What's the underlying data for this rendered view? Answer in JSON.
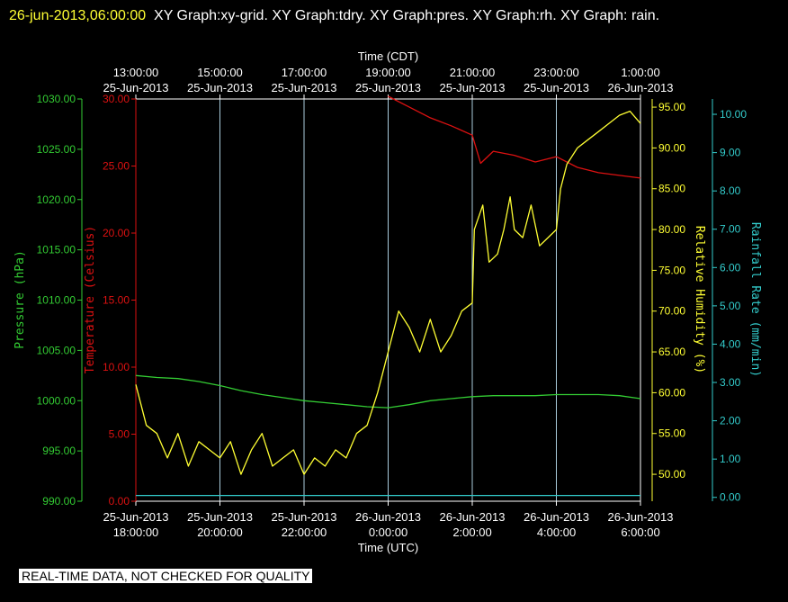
{
  "header": {
    "timestamp": "26-jun-2013,06:00:00",
    "graphs": "XY Graph:xy-grid.  XY Graph:tdry.  XY Graph:pres.  XY Graph:rh.  XY Graph: rain."
  },
  "notice": "REAL-TIME DATA, NOT CHECKED FOR QUALITY",
  "colors": {
    "pressure": "#33cc33",
    "temperature": "#dd1111",
    "humidity": "#ffff33",
    "rain": "#33cccc",
    "grid": "#aaccdd",
    "text": "#ffffff"
  },
  "chart_data": {
    "type": "line",
    "top_axis": {
      "label": "Time (CDT)",
      "ticks": [
        [
          "13:00:00",
          "25-Jun-2013"
        ],
        [
          "15:00:00",
          "25-Jun-2013"
        ],
        [
          "17:00:00",
          "25-Jun-2013"
        ],
        [
          "19:00:00",
          "25-Jun-2013"
        ],
        [
          "21:00:00",
          "25-Jun-2013"
        ],
        [
          "23:00:00",
          "25-Jun-2013"
        ],
        [
          "1:00:00",
          "26-Jun-2013"
        ]
      ]
    },
    "bottom_axis": {
      "label": "Time (UTC)",
      "ticks": [
        [
          "25-Jun-2013",
          "18:00:00"
        ],
        [
          "25-Jun-2013",
          "20:00:00"
        ],
        [
          "25-Jun-2013",
          "22:00:00"
        ],
        [
          "26-Jun-2013",
          "0:00:00"
        ],
        [
          "26-Jun-2013",
          "2:00:00"
        ],
        [
          "26-Jun-2013",
          "4:00:00"
        ],
        [
          "26-Jun-2013",
          "6:00:00"
        ]
      ],
      "range_hours_utc": [
        18,
        30
      ]
    },
    "axes": {
      "pressure": {
        "label": "Pressure (hPa)",
        "ylim": [
          990,
          1030
        ],
        "ticks": [
          "990.00",
          "995.00",
          "1000.00",
          "1005.00",
          "1010.00",
          "1015.00",
          "1020.00",
          "1025.00",
          "1030.00"
        ]
      },
      "temperature": {
        "label": "Temperature (Celsius)",
        "ylim": [
          0,
          30
        ],
        "ticks": [
          "0.00",
          "5.00",
          "10.00",
          "15.00",
          "20.00",
          "25.00",
          "30.00"
        ]
      },
      "humidity": {
        "label": "Relative Humidity (%)",
        "ylim": [
          46.7,
          96.0
        ],
        "ticks": [
          "50.00",
          "55.00",
          "60.00",
          "65.00",
          "70.00",
          "75.00",
          "80.00",
          "85.00",
          "90.00",
          "95.00"
        ]
      },
      "rain": {
        "label": "Rainfall Rate (mm/min)",
        "ylim": [
          -0.1,
          10.4
        ],
        "ticks": [
          "0.00",
          "1.00",
          "2.00",
          "3.00",
          "4.00",
          "5.00",
          "6.00",
          "7.00",
          "8.00",
          "9.00",
          "10.00"
        ]
      }
    },
    "grid": true,
    "series": [
      {
        "name": "pres",
        "axis": "pressure",
        "x": [
          18,
          18.5,
          19,
          19.5,
          20,
          20.5,
          21,
          21.5,
          22,
          22.5,
          23,
          23.5,
          24,
          24.5,
          25,
          25.5,
          26,
          26.5,
          27,
          27.5,
          28,
          28.5,
          29,
          29.5,
          30
        ],
        "y": [
          1002.5,
          1002.3,
          1002.2,
          1001.9,
          1001.5,
          1001.0,
          1000.6,
          1000.3,
          1000.0,
          999.8,
          999.6,
          999.4,
          999.3,
          999.6,
          1000.0,
          1000.2,
          1000.4,
          1000.5,
          1000.5,
          1000.5,
          1000.6,
          1000.6,
          1000.6,
          1000.5,
          1000.2
        ]
      },
      {
        "name": "tdry",
        "axis": "temperature",
        "x": [
          24,
          24.5,
          25,
          25.5,
          26,
          26.2,
          26.5,
          27,
          27.5,
          28,
          28.5,
          29,
          29.5,
          30
        ],
        "y": [
          30.2,
          29.4,
          28.6,
          28.0,
          27.3,
          25.2,
          26.1,
          25.8,
          25.3,
          25.7,
          24.9,
          24.5,
          24.3,
          24.1
        ]
      },
      {
        "name": "rh",
        "axis": "humidity",
        "x": [
          18,
          18.25,
          18.5,
          18.75,
          19,
          19.25,
          19.5,
          19.75,
          20,
          20.25,
          20.5,
          20.75,
          21,
          21.25,
          21.5,
          21.75,
          22,
          22.25,
          22.5,
          22.75,
          23,
          23.25,
          23.5,
          23.75,
          24,
          24.25,
          24.5,
          24.75,
          25,
          25.25,
          25.5,
          25.75,
          26,
          26.05,
          26.25,
          26.4,
          26.6,
          26.75,
          26.9,
          27,
          27.2,
          27.4,
          27.6,
          27.8,
          28,
          28.1,
          28.25,
          28.5,
          28.75,
          29,
          29.25,
          29.5,
          29.75,
          30
        ],
        "y": [
          61,
          56,
          55,
          52,
          55,
          51,
          54,
          53,
          52,
          54,
          50,
          53,
          55,
          51,
          52,
          53,
          50,
          52,
          51,
          53,
          52,
          55,
          56,
          60,
          65,
          70,
          68,
          65,
          69,
          65,
          67,
          70,
          71,
          80,
          83,
          76,
          77,
          80,
          84,
          80,
          79,
          83,
          78,
          79,
          80,
          85,
          88,
          90,
          91,
          92,
          93,
          94,
          94.5,
          93
        ]
      },
      {
        "name": "rain",
        "axis": "rain",
        "x": [
          18,
          30
        ],
        "y": [
          0.05,
          0.05
        ]
      }
    ]
  }
}
